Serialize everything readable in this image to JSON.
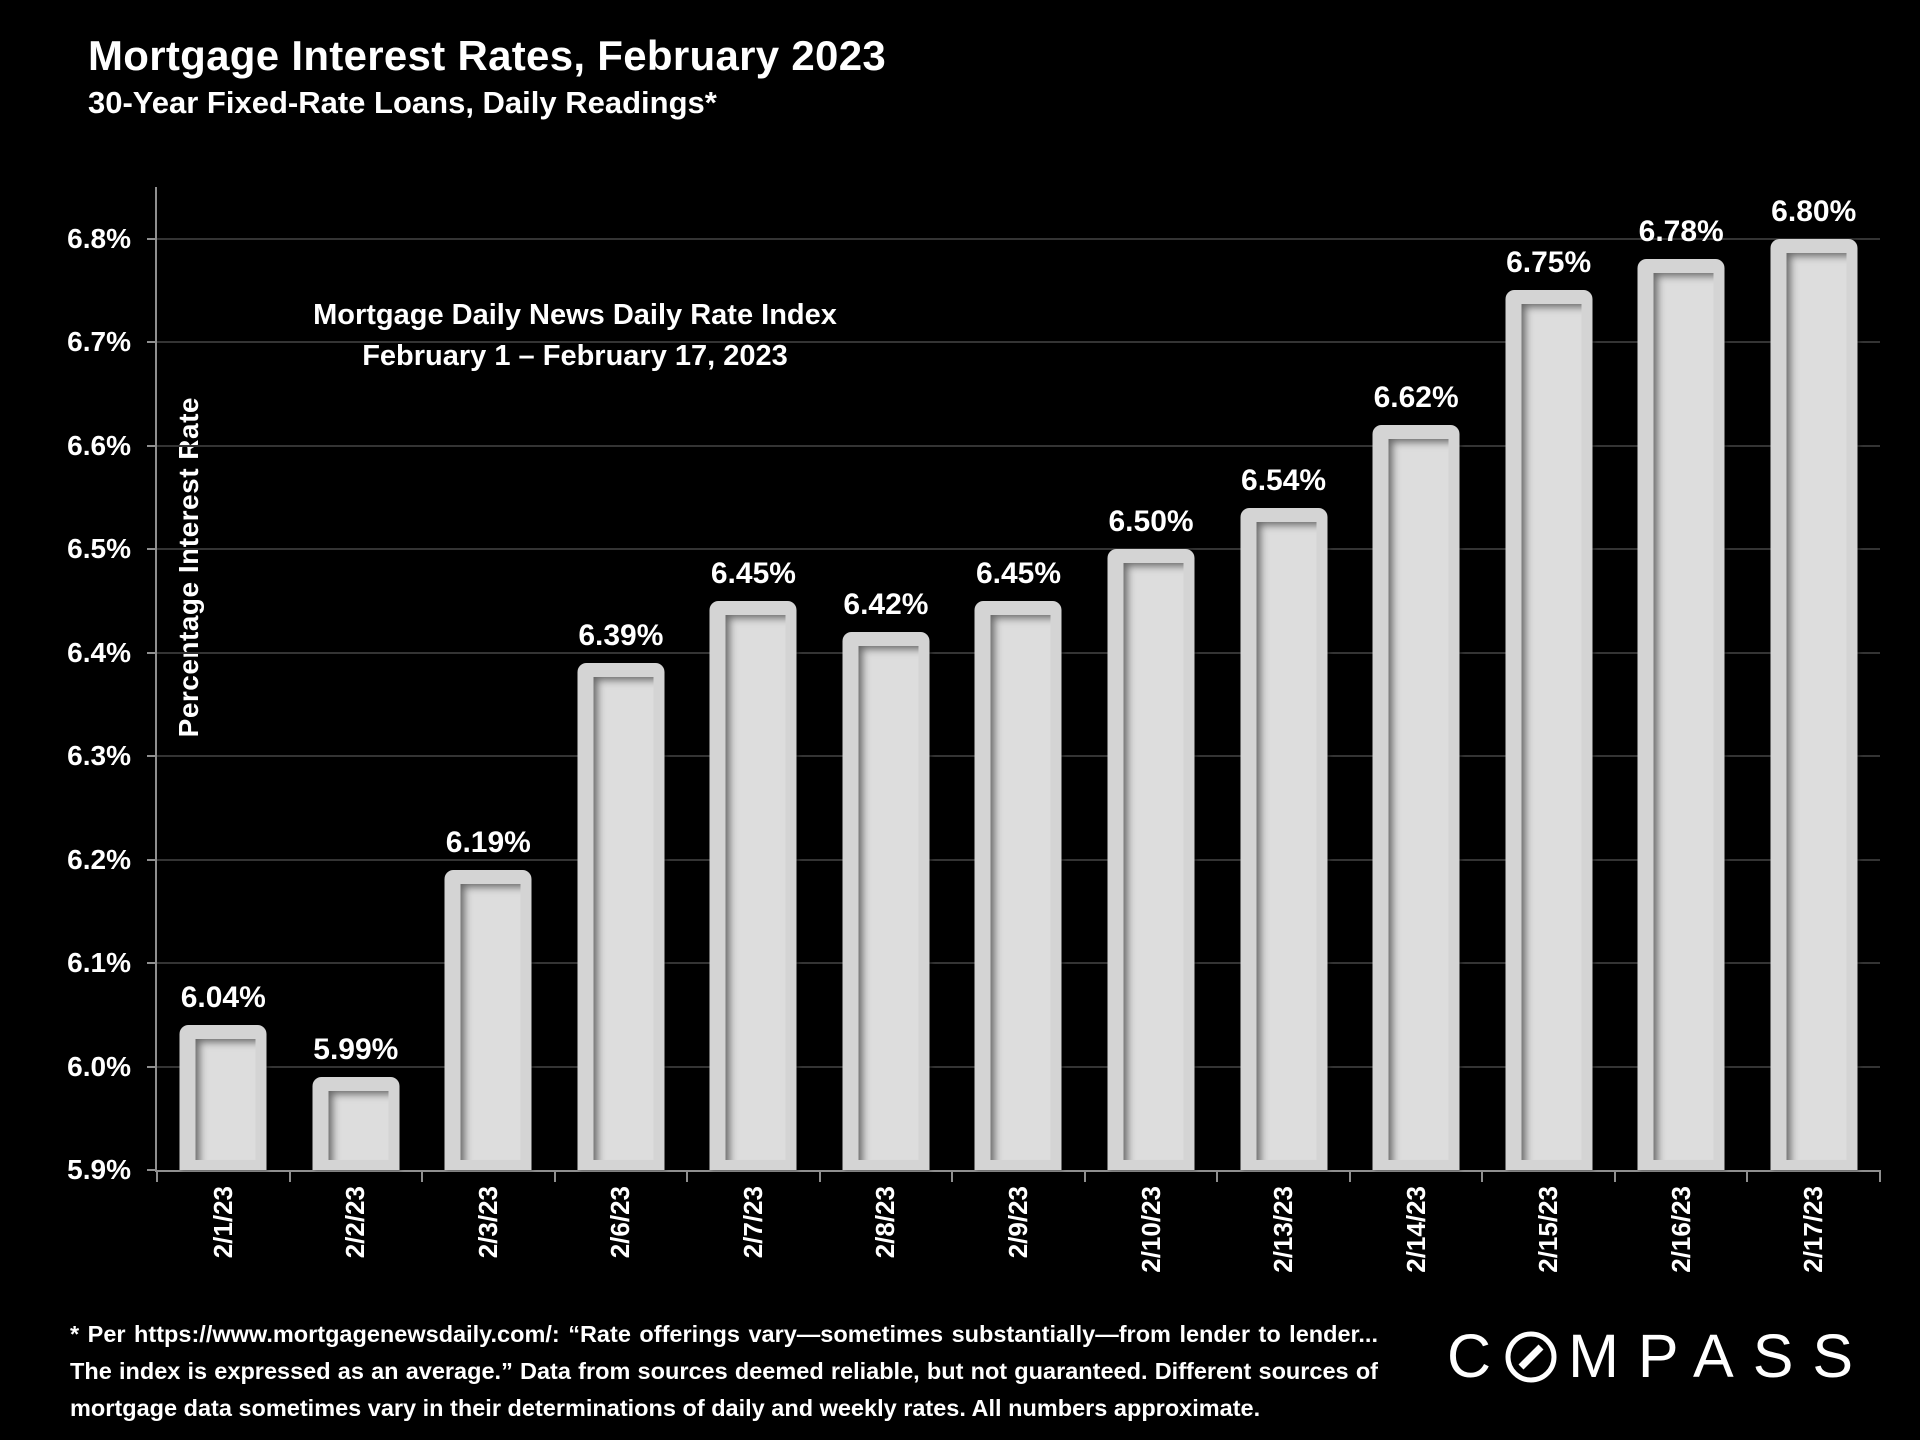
{
  "header": {
    "title": "Mortgage Interest Rates, February 2023",
    "subtitle": "30-Year Fixed-Rate Loans, Daily Readings*"
  },
  "chart_data": {
    "type": "bar",
    "title": "Mortgage Interest Rates, February 2023",
    "subtitle": "30-Year Fixed-Rate Loans, Daily Readings*",
    "annotation": [
      "Mortgage Daily News Daily Rate Index",
      "February 1 – February 17, 2023"
    ],
    "xlabel": "",
    "ylabel": "Percentage Interest Rate",
    "categories": [
      "2/1/23",
      "2/2/23",
      "2/3/23",
      "2/6/23",
      "2/7/23",
      "2/8/23",
      "2/9/23",
      "2/10/23",
      "2/13/23",
      "2/14/23",
      "2/15/23",
      "2/16/23",
      "2/17/23"
    ],
    "values": [
      6.04,
      5.99,
      6.19,
      6.39,
      6.45,
      6.42,
      6.45,
      6.5,
      6.54,
      6.62,
      6.75,
      6.78,
      6.8
    ],
    "value_labels": [
      "6.04%",
      "5.99%",
      "6.19%",
      "6.39%",
      "6.45%",
      "6.42%",
      "6.45%",
      "6.50%",
      "6.54%",
      "6.62%",
      "6.75%",
      "6.78%",
      "6.80%"
    ],
    "y_ticks": [
      {
        "value": 6.8,
        "label": "6.8%"
      },
      {
        "value": 6.7,
        "label": "6.7%"
      },
      {
        "value": 6.6,
        "label": "6.6%"
      },
      {
        "value": 6.5,
        "label": "6.5%"
      },
      {
        "value": 6.4,
        "label": "6.4%"
      },
      {
        "value": 6.3,
        "label": "6.3%"
      },
      {
        "value": 6.2,
        "label": "6.2%"
      },
      {
        "value": 6.1,
        "label": "6.1%"
      },
      {
        "value": 6.0,
        "label": "6.0%"
      },
      {
        "value": 5.9,
        "label": "5.9%"
      }
    ],
    "ylim": [
      5.9,
      6.85
    ],
    "grid": true,
    "legend_position": "none",
    "colors": {
      "background": "#000000",
      "bar_fill": "#d4d4d4",
      "bar_inner": "#dddddd",
      "gridline": "#343434",
      "axis": "#8f8f8f",
      "text": "#ffffff"
    }
  },
  "footer": {
    "footnote": "* Per https://www.mortgagenewsdaily.com/: “Rate offerings vary—sometimes substantially—from lender to lender... The index is expressed as an average.” Data from sources deemed reliable, but not guaranteed. Different sources of mortgage data sometimes vary in their determinations of daily and weekly rates. All numbers approximate.",
    "logo": {
      "name": "COMPASS",
      "c": "C",
      "rest": "MPASS"
    }
  }
}
